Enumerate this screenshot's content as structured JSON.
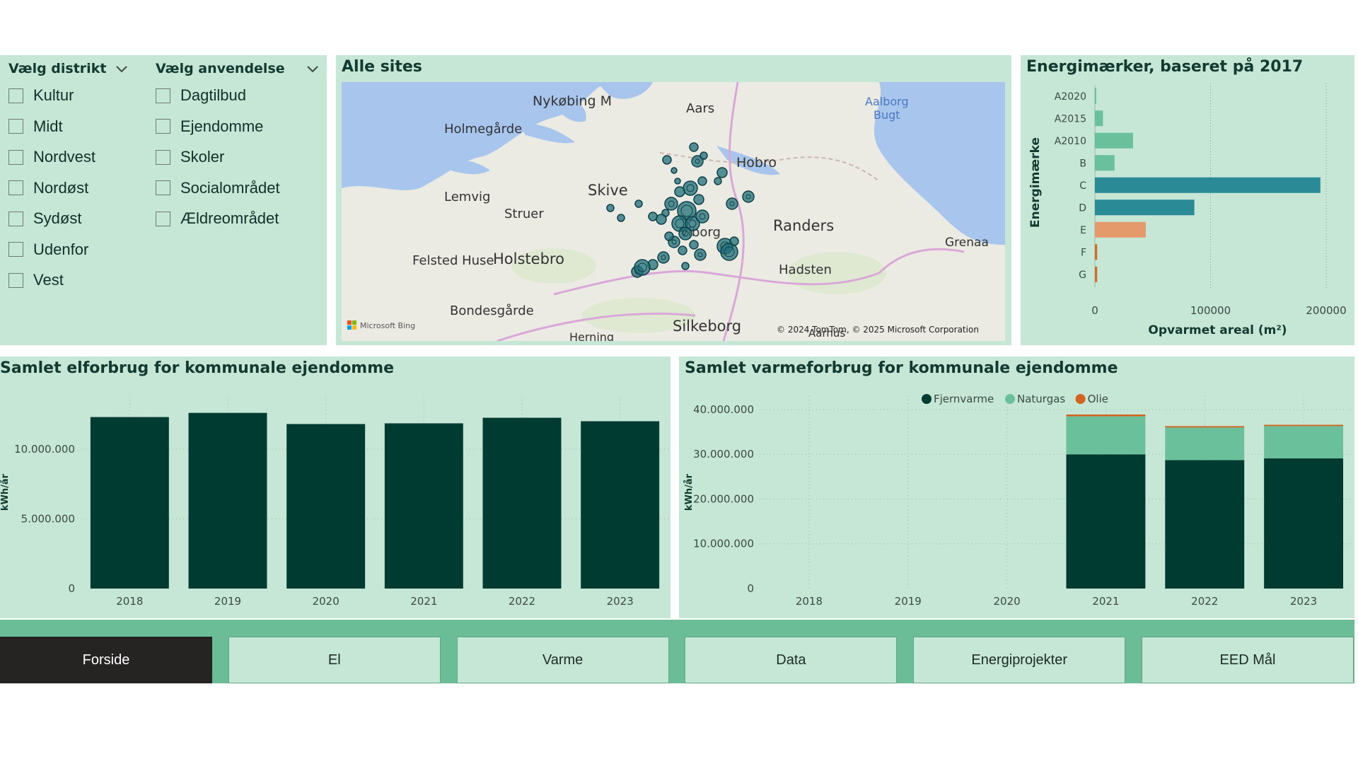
{
  "slicers": {
    "district": {
      "title": "Vælg distrikt",
      "items": [
        "Kultur",
        "Midt",
        "Nordvest",
        "Nordøst",
        "Sydøst",
        "Udenfor",
        "Vest"
      ]
    },
    "usage": {
      "title": "Vælg anvendelse",
      "items": [
        "Dagtilbud",
        "Ejendomme",
        "Skoler",
        "Socialområdet",
        "Ældreområdet"
      ]
    }
  },
  "map": {
    "title": "Alle sites",
    "places": [
      "Nykøbing M",
      "Aars",
      "Aalborg",
      "Bugt",
      "Holmegårde",
      "Hobro",
      "Skive",
      "Lemvig",
      "Struer",
      "Randers",
      "Grenaa",
      "Felsted Huse",
      "Holstebro",
      "Hadsten",
      "Bondesgårde",
      "Silkeborg",
      "Viborg",
      "Aarhus",
      "Herning"
    ],
    "attribution": "© 2024 TomTom, © 2025 Microsoft Corporation",
    "bing_label": "Microsoft Bing"
  },
  "chart_data": [
    {
      "id": "energy",
      "type": "bar",
      "orientation": "horizontal",
      "title": "Energimærker, baseret på 2017",
      "xlabel": "Opvarmet areal (m²)",
      "ylabel": "Energimærke",
      "categories": [
        "A2020",
        "A2015",
        "A2010",
        "B",
        "C",
        "D",
        "E",
        "F",
        "G"
      ],
      "values": [
        300,
        7000,
        33000,
        17000,
        195000,
        86000,
        44000,
        2000,
        2000
      ],
      "colors": [
        "#6ac09a",
        "#6ac09a",
        "#6ac09a",
        "#6ac09a",
        "#2a8b96",
        "#2a8b96",
        "#e49a6a",
        "#d46a2a",
        "#d46a2a"
      ],
      "xlim": [
        0,
        200000
      ],
      "xticks": [
        0,
        100000,
        200000
      ],
      "xtick_labels": [
        "0",
        "100000",
        "200000"
      ],
      "grid": true
    },
    {
      "id": "el",
      "type": "bar",
      "title": "Samlet elforbrug for kommunale ejendomme",
      "xlabel": "",
      "ylabel": "kWh/år",
      "categories": [
        "2018",
        "2019",
        "2020",
        "2021",
        "2022",
        "2023"
      ],
      "values": [
        12300000,
        12600000,
        11800000,
        11850000,
        12250000,
        12000000
      ],
      "ylim": [
        0,
        13800000
      ],
      "yticks": [
        0,
        5000000,
        10000000
      ],
      "ytick_labels": [
        "0",
        "5.000.000",
        "10.000.000"
      ],
      "color": "#003b32",
      "grid": true
    },
    {
      "id": "heat",
      "type": "bar",
      "stacked": true,
      "title": "Samlet varmeforbrug for kommunale ejendomme",
      "xlabel": "",
      "ylabel": "kWh/år",
      "categories": [
        "2018",
        "2019",
        "2020",
        "2021",
        "2022",
        "2023"
      ],
      "series": [
        {
          "name": "Fjernvarme",
          "color": "#003b32",
          "values": [
            0,
            0,
            0,
            30000000,
            28700000,
            29100000
          ]
        },
        {
          "name": "Naturgas",
          "color": "#6ac09a",
          "values": [
            0,
            0,
            0,
            8500000,
            7300000,
            7200000
          ]
        },
        {
          "name": "Olie",
          "color": "#d2641e",
          "values": [
            0,
            0,
            0,
            400000,
            300000,
            300000
          ]
        }
      ],
      "ylim": [
        0,
        43000000
      ],
      "yticks": [
        0,
        10000000,
        20000000,
        30000000,
        40000000
      ],
      "ytick_labels": [
        "0",
        "10.000.000",
        "20.000.000",
        "30.000.000",
        "40.000.000"
      ],
      "legend": "top-center",
      "grid": true
    }
  ],
  "nav": {
    "items": [
      "Forside",
      "El",
      "Varme",
      "Data",
      "Energiprojekter",
      "EED Mål"
    ],
    "active": 0
  },
  "colors": {
    "panel_bg": "#c6e6d6",
    "nav_bg": "#6bbd97",
    "active_nav": "#252423"
  }
}
